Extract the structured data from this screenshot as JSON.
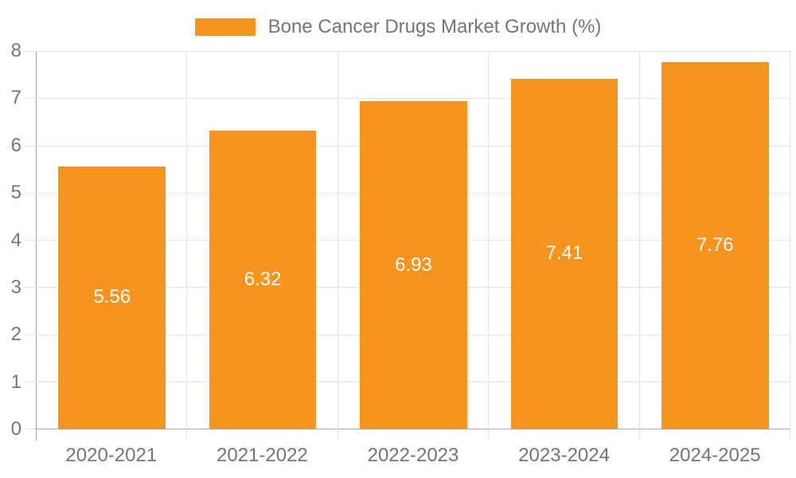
{
  "chart_data": {
    "type": "bar",
    "title": "Bone Cancer Drugs Market Growth (%)",
    "categories": [
      "2020-2021",
      "2021-2022",
      "2022-2023",
      "2023-2024",
      "2024-2025"
    ],
    "values": [
      5.56,
      6.32,
      6.93,
      7.41,
      7.76
    ],
    "value_labels": [
      "5.56",
      "6.32",
      "6.93",
      "7.41",
      "7.76"
    ],
    "xlabel": "",
    "ylabel": "",
    "ylim": [
      0,
      8
    ],
    "yticks": [
      0,
      1,
      2,
      3,
      4,
      5,
      6,
      7,
      8
    ],
    "grid": true,
    "legend_position": "top-center",
    "colors": {
      "bar": "#F7941E",
      "bar_label": "#FFFFFF",
      "grid": "#E4E4E4",
      "axis": "#A6A6A6",
      "tick_text": "#757575",
      "background": "#FFFFFF"
    }
  }
}
